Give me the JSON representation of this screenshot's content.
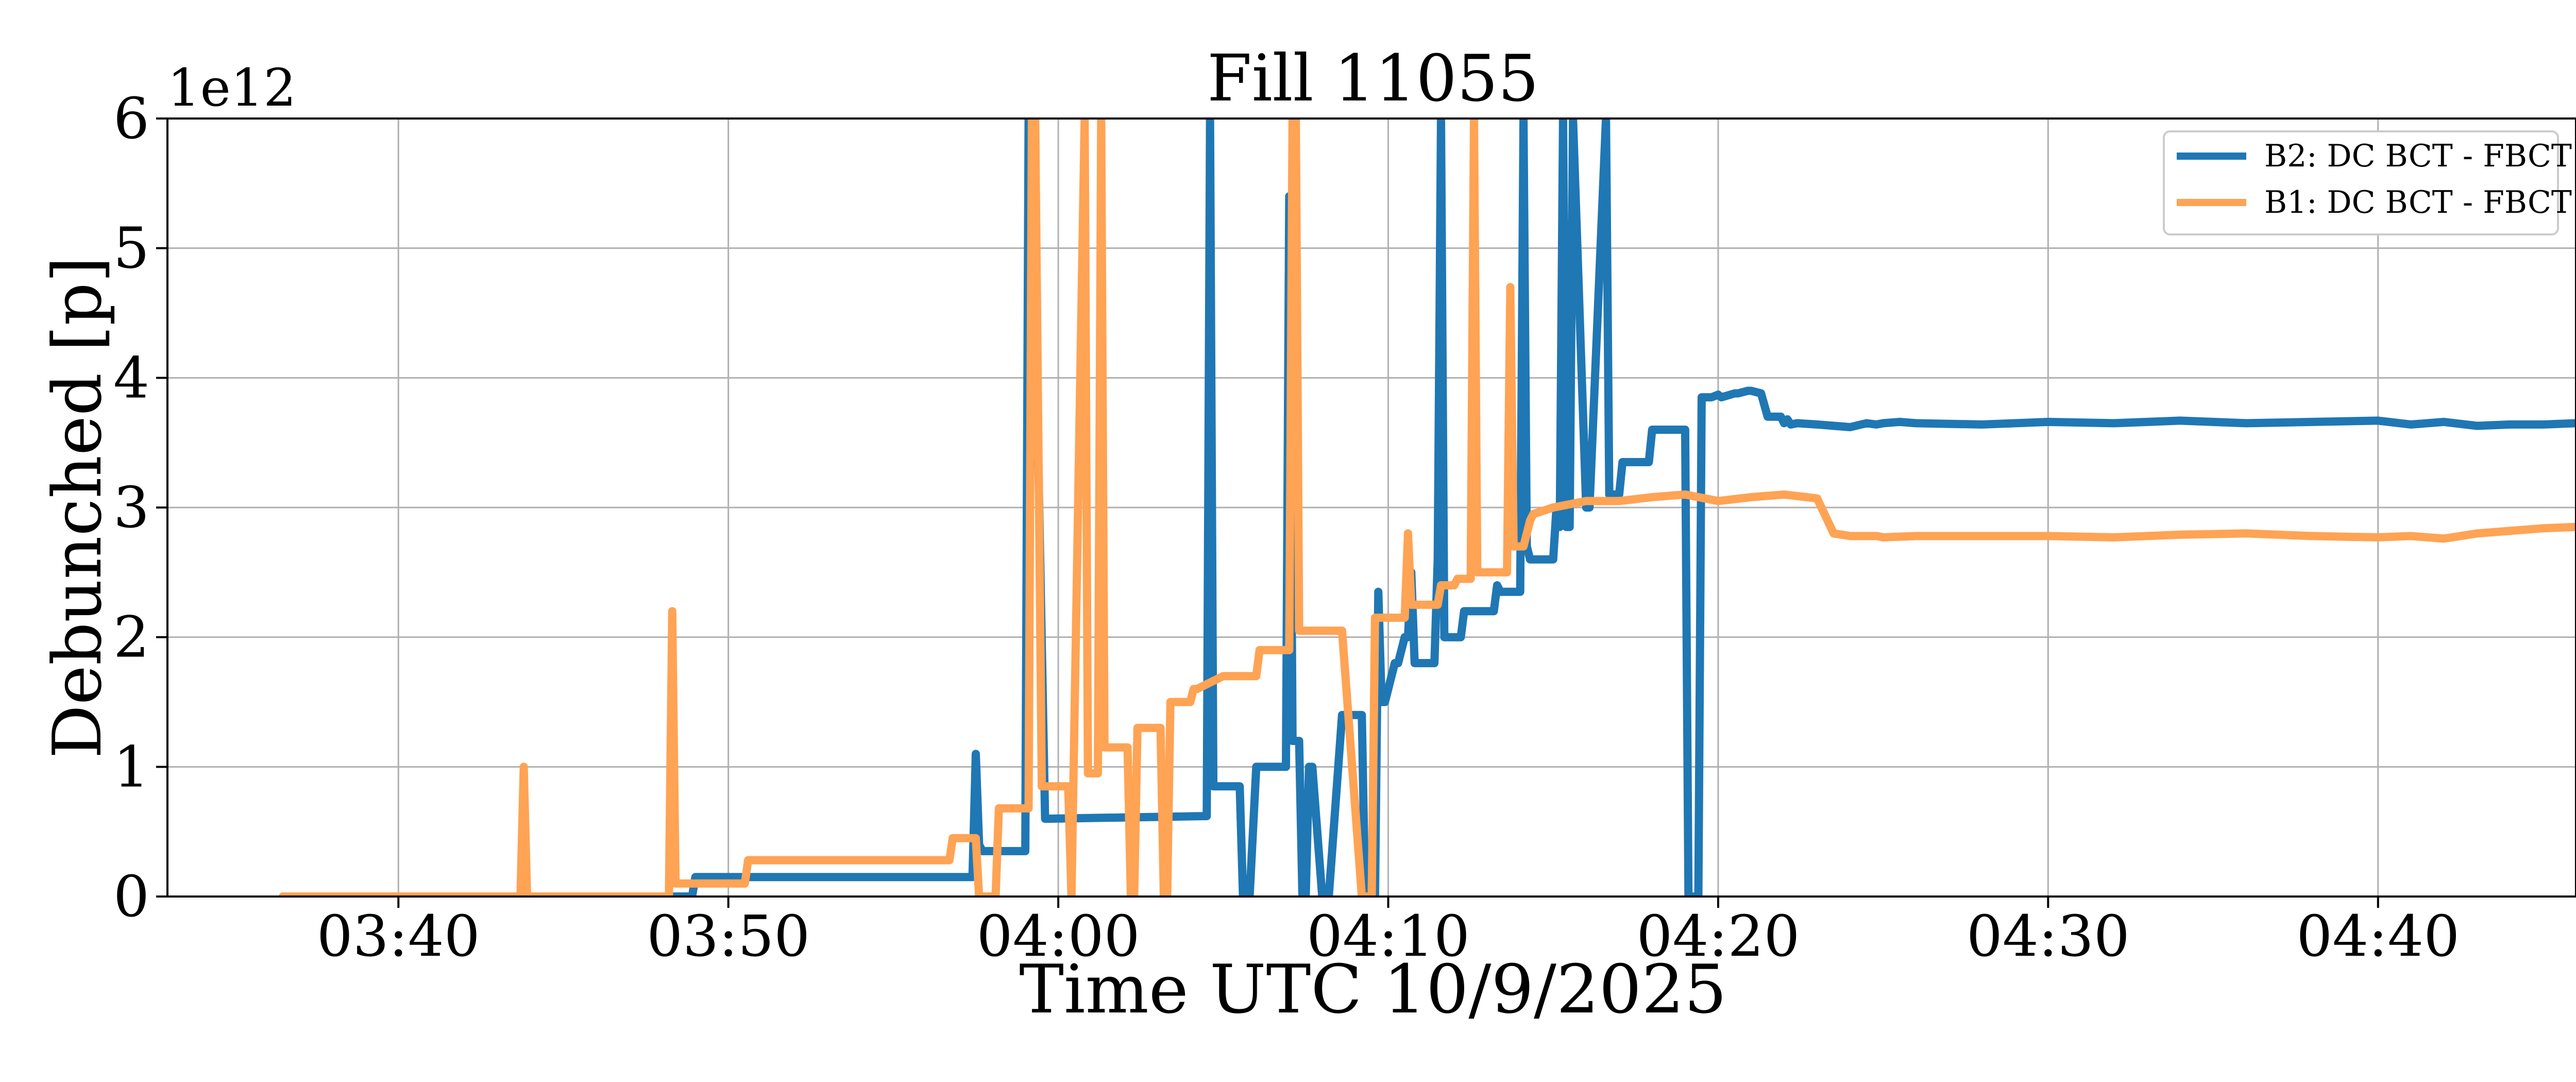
{
  "chart_data": {
    "type": "line",
    "title": "Fill 11055",
    "xlabel": "Time UTC 10/9/2025",
    "ylabel": "Debunched [p]",
    "y_offset_label": "1e12",
    "xlim": [
      0,
      73
    ],
    "ylim": [
      0,
      6
    ],
    "x_unit": "minutes from 03:33 UTC",
    "x_ticks": [
      {
        "value": 7,
        "label": "03:40"
      },
      {
        "value": 17,
        "label": "03:50"
      },
      {
        "value": 27,
        "label": "04:00"
      },
      {
        "value": 37,
        "label": "04:10"
      },
      {
        "value": 47,
        "label": "04:20"
      },
      {
        "value": 57,
        "label": "04:30"
      },
      {
        "value": 67,
        "label": "04:40"
      }
    ],
    "y_ticks": [
      0,
      1,
      2,
      3,
      4,
      5,
      6
    ],
    "grid": true,
    "legend_position": "top-right",
    "series": [
      {
        "name": "B2: DC BCT - FBCT",
        "color": "#1f77b4",
        "x": [
          3.5,
          15.9,
          16.0,
          24.4,
          24.5,
          24.6,
          24.7,
          24.8,
          26.0,
          26.1,
          26.2,
          26.6,
          26.7,
          31.4,
          31.5,
          31.6,
          31.7,
          32.5,
          32.6,
          32.8,
          33.0,
          33.1,
          33.2,
          33.9,
          34.0,
          34.1,
          34.3,
          34.4,
          34.5,
          34.6,
          34.7,
          35.0,
          35.1,
          35.2,
          35.6,
          35.7,
          36.2,
          36.3,
          36.5,
          36.6,
          36.7,
          36.8,
          36.9,
          37.2,
          37.3,
          37.5,
          37.6,
          37.7,
          37.8,
          37.9,
          38.4,
          38.5,
          38.6,
          38.7,
          38.8,
          39.2,
          39.3,
          39.4,
          39.5,
          39.6,
          40.1,
          40.2,
          40.3,
          40.4,
          40.5,
          41.0,
          41.1,
          41.2,
          41.3,
          41.7,
          41.8,
          42.0,
          42.1,
          42.2,
          42.3,
          42.4,
          42.5,
          42.6,
          43.0,
          43.1,
          43.6,
          43.7,
          44.0,
          44.1,
          44.8,
          44.9,
          45.0,
          45.1,
          45.3,
          45.4,
          45.5,
          45.6,
          45.7,
          45.8,
          46.0,
          46.1,
          46.4,
          46.5,
          46.7,
          46.8,
          47.0,
          47.1,
          47.5,
          47.6,
          47.9,
          48.0,
          48.3,
          48.5,
          48.9,
          49.0,
          49.1,
          49.2,
          49.4,
          50.0,
          51.0,
          51.5,
          51.8,
          52.0,
          52.5,
          53.0,
          55.0,
          57.0,
          59.0,
          61.0,
          63.0,
          65.0,
          67.0,
          68.0,
          69.0,
          70.0,
          71.0,
          72.0,
          73.0
        ],
        "y": [
          0.0,
          0.0,
          0.15,
          0.15,
          1.1,
          0.4,
          0.35,
          0.35,
          0.35,
          6.0,
          6.0,
          0.6,
          0.6,
          0.62,
          0.62,
          6.0,
          0.85,
          0.85,
          0.0,
          0.0,
          1.0,
          1.0,
          1.0,
          1.0,
          5.4,
          1.2,
          1.2,
          0.0,
          0.0,
          1.0,
          1.0,
          0.0,
          0.0,
          0.0,
          1.4,
          1.4,
          1.4,
          0.0,
          0.0,
          0.0,
          2.35,
          1.5,
          1.5,
          1.8,
          1.8,
          2.0,
          2.0,
          2.5,
          1.8,
          1.8,
          1.8,
          2.6,
          6.0,
          2.0,
          2.0,
          2.0,
          2.2,
          2.2,
          2.2,
          2.2,
          2.2,
          2.2,
          2.4,
          2.35,
          2.35,
          2.35,
          6.0,
          2.7,
          2.6,
          2.6,
          2.6,
          2.6,
          3.0,
          2.85,
          6.0,
          2.85,
          2.85,
          6.0,
          3.0,
          3.0,
          6.0,
          3.1,
          3.1,
          3.35,
          3.35,
          3.35,
          3.6,
          3.6,
          3.6,
          3.6,
          3.6,
          3.6,
          3.6,
          3.6,
          3.6,
          0.0,
          0.0,
          3.85,
          3.85,
          3.85,
          3.87,
          3.85,
          3.88,
          3.88,
          3.9,
          3.9,
          3.88,
          3.7,
          3.7,
          3.65,
          3.68,
          3.64,
          3.65,
          3.64,
          3.62,
          3.65,
          3.64,
          3.65,
          3.66,
          3.65,
          3.64,
          3.66,
          3.65,
          3.67,
          3.65,
          3.66,
          3.67,
          3.64,
          3.66,
          3.63,
          3.64,
          3.64,
          3.65
        ]
      },
      {
        "name": "B1: DC BCT - FBCT",
        "color": "#ffa354",
        "x": [
          3.5,
          10.7,
          10.8,
          10.9,
          15.2,
          15.3,
          15.4,
          15.6,
          17.5,
          17.6,
          23.7,
          23.8,
          24.5,
          24.6,
          25.1,
          25.2,
          26.1,
          26.2,
          26.3,
          26.5,
          26.6,
          26.7,
          26.8,
          26.9,
          27.0,
          27.1,
          27.2,
          27.3,
          27.4,
          27.8,
          27.9,
          28.0,
          28.2,
          28.3,
          28.4,
          28.5,
          29.0,
          29.1,
          29.2,
          29.3,
          29.4,
          30.0,
          30.1,
          30.2,
          30.3,
          30.4,
          31.0,
          31.1,
          31.2,
          32.0,
          32.1,
          33.0,
          33.1,
          34.0,
          34.1,
          34.2,
          34.3,
          34.4,
          34.5,
          34.6,
          35.5,
          35.6,
          36.2,
          36.3,
          36.5,
          36.6,
          37.0,
          37.1,
          37.5,
          37.6,
          37.7,
          38.5,
          38.6,
          39.0,
          39.1,
          39.2,
          39.5,
          39.6,
          39.7,
          39.8,
          40.0,
          40.1,
          40.3,
          40.4,
          40.6,
          40.7,
          40.8,
          41.0,
          41.1,
          41.3,
          41.4,
          42.0,
          43.0,
          44.0,
          45.0,
          46.0,
          47.0,
          48.0,
          49.0,
          50.0,
          50.5,
          51.0,
          51.5,
          51.8,
          52.0,
          53.0,
          55.0,
          57.0,
          59.0,
          61.0,
          63.0,
          65.0,
          67.0,
          68.0,
          69.0,
          70.0,
          71.0,
          72.0,
          73.0
        ],
        "y": [
          0.0,
          0.0,
          1.0,
          0.0,
          0.0,
          2.2,
          0.1,
          0.1,
          0.1,
          0.28,
          0.28,
          0.45,
          0.45,
          0.0,
          0.0,
          0.68,
          0.68,
          6.0,
          6.0,
          0.85,
          0.85,
          0.85,
          0.85,
          0.85,
          0.85,
          0.85,
          0.85,
          0.85,
          0.0,
          6.0,
          0.95,
          0.95,
          0.95,
          6.0,
          1.15,
          1.15,
          1.15,
          1.15,
          0.0,
          0.0,
          1.3,
          1.3,
          1.3,
          0.0,
          0.0,
          1.5,
          1.5,
          1.6,
          1.6,
          1.7,
          1.7,
          1.7,
          1.9,
          1.9,
          6.0,
          6.0,
          2.05,
          2.05,
          2.05,
          2.05,
          2.05,
          2.05,
          0.0,
          0.0,
          0.0,
          2.15,
          2.15,
          2.15,
          2.15,
          2.8,
          2.25,
          2.25,
          2.4,
          2.4,
          2.45,
          2.45,
          2.45,
          6.0,
          2.5,
          2.5,
          2.5,
          2.5,
          2.5,
          2.5,
          2.5,
          4.7,
          2.7,
          2.7,
          2.7,
          2.9,
          2.95,
          3.0,
          3.05,
          3.05,
          3.08,
          3.1,
          3.05,
          3.08,
          3.1,
          3.07,
          2.8,
          2.78,
          2.78,
          2.78,
          2.77,
          2.78,
          2.78,
          2.78,
          2.77,
          2.79,
          2.8,
          2.78,
          2.77,
          2.78,
          2.76,
          2.8,
          2.82,
          2.84,
          2.85
        ]
      }
    ]
  }
}
